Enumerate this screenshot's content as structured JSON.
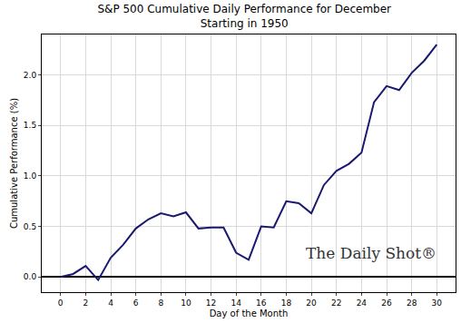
{
  "chart_data": {
    "type": "line",
    "title": [
      "S&P 500 Cumulative Daily Performance for December",
      "Starting in 1950"
    ],
    "x_label": "Day of the Month",
    "y_label": "Cumulative Performance (%)",
    "x": [
      0,
      1,
      2,
      3,
      4,
      5,
      6,
      7,
      8,
      9,
      10,
      11,
      12,
      13,
      14,
      15,
      16,
      17,
      18,
      19,
      20,
      21,
      22,
      23,
      24,
      25,
      26,
      27,
      28,
      29,
      30
    ],
    "values": [
      0.0,
      0.03,
      0.11,
      -0.03,
      0.19,
      0.32,
      0.48,
      0.57,
      0.63,
      0.6,
      0.64,
      0.48,
      0.49,
      0.49,
      0.24,
      0.17,
      0.5,
      0.49,
      0.75,
      0.73,
      0.63,
      0.91,
      1.05,
      1.12,
      1.23,
      1.73,
      1.89,
      1.85,
      2.02,
      2.14,
      2.3
    ],
    "color": "#191970",
    "xlim": [
      -1.5,
      31.5
    ],
    "xticks": [
      0,
      2,
      4,
      6,
      8,
      10,
      12,
      14,
      16,
      18,
      20,
      22,
      24,
      26,
      28,
      30
    ],
    "ylim": [
      -0.15,
      2.4
    ],
    "yticks": [
      {
        "value": 0,
        "label": "0.0"
      },
      0.5,
      {
        "value": 1,
        "label": "1.0"
      },
      1.5,
      {
        "value": 2,
        "label": "2.0"
      }
    ],
    "grid": true,
    "annotations": [
      {
        "text": "The Daily Shot®",
        "x": 24.8,
        "y": 0.24
      }
    ]
  }
}
